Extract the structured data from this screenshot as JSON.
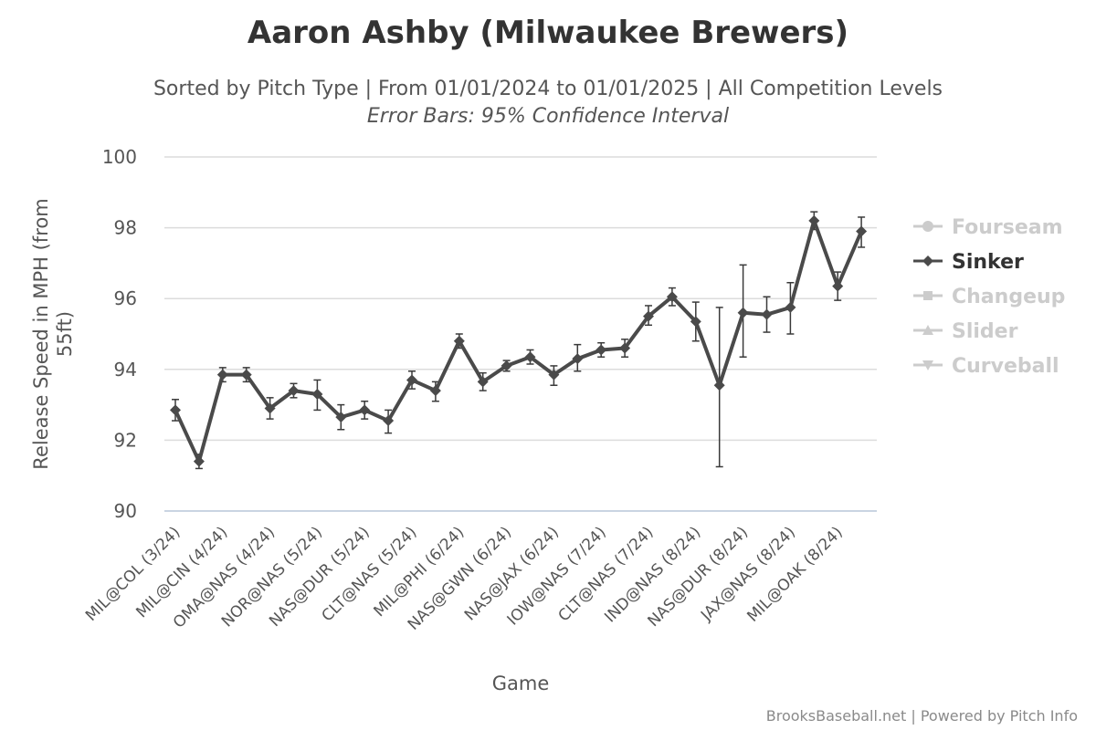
{
  "chart_data": {
    "type": "line",
    "title": "Aaron Ashby (Milwaukee Brewers)",
    "subtitle": "Sorted by Pitch Type | From 01/01/2024 to 01/01/2025 | All Competition Levels",
    "subtitle2": "Error Bars: 95% Confidence Interval",
    "xlabel": "Game",
    "ylabel": "Release Speed in MPH (from 55ft)",
    "ylim": [
      90,
      100
    ],
    "yticks": [
      90,
      92,
      94,
      96,
      98,
      100
    ],
    "grid": true,
    "legend_position": "right",
    "x_tick_labels": [
      "MIL@COL (3/24)",
      "MIL@CIN (4/24)",
      "OMA@NAS (4/24)",
      "NOR@NAS (5/24)",
      "NAS@DUR (5/24)",
      "CLT@NAS (5/24)",
      "MIL@PHI (6/24)",
      "NAS@GWN (6/24)",
      "NAS@JAX (6/24)",
      "IOW@NAS (7/24)",
      "CLT@NAS (7/24)",
      "IND@NAS (8/24)",
      "NAS@DUR (8/24)",
      "JAX@NAS (8/24)",
      "MIL@OAK (8/24)"
    ],
    "series": [
      {
        "name": "Sinker",
        "active": true,
        "color": "#4a4a4a",
        "marker": "diamond",
        "values": [
          92.85,
          91.4,
          93.85,
          93.85,
          92.9,
          93.4,
          93.3,
          92.65,
          92.85,
          92.55,
          93.7,
          93.4,
          94.8,
          93.65,
          94.1,
          94.35,
          93.85,
          94.3,
          94.55,
          94.6,
          95.5,
          96.05,
          95.35,
          93.55,
          95.6,
          95.55,
          95.75,
          98.2,
          96.35,
          97.9
        ],
        "error_low": [
          92.55,
          91.2,
          93.65,
          93.65,
          92.6,
          93.2,
          92.85,
          92.3,
          92.6,
          92.2,
          93.45,
          93.1,
          94.6,
          93.4,
          93.95,
          94.15,
          93.55,
          93.95,
          94.35,
          94.35,
          95.25,
          95.8,
          94.8,
          91.25,
          94.35,
          95.05,
          95.0,
          97.95,
          95.95,
          97.45
        ],
        "error_high": [
          93.15,
          91.6,
          94.05,
          94.05,
          93.2,
          93.6,
          93.7,
          93.0,
          93.1,
          92.85,
          93.95,
          93.65,
          95.0,
          93.9,
          94.25,
          94.55,
          94.1,
          94.7,
          94.75,
          94.85,
          95.8,
          96.3,
          95.9,
          95.75,
          96.95,
          96.05,
          96.45,
          98.45,
          96.75,
          98.3
        ]
      },
      {
        "name": "Fourseam",
        "active": false,
        "color": "#cccccc",
        "marker": "circle",
        "values": []
      },
      {
        "name": "Changeup",
        "active": false,
        "color": "#cccccc",
        "marker": "square",
        "values": []
      },
      {
        "name": "Slider",
        "active": false,
        "color": "#cccccc",
        "marker": "triangle",
        "values": []
      },
      {
        "name": "Curveball",
        "active": false,
        "color": "#cccccc",
        "marker": "triangle-down",
        "values": []
      }
    ],
    "legend_order": [
      "Fourseam",
      "Sinker",
      "Changeup",
      "Slider",
      "Curveball"
    ]
  },
  "credit": "BrooksBaseball.net | Powered by Pitch Info"
}
